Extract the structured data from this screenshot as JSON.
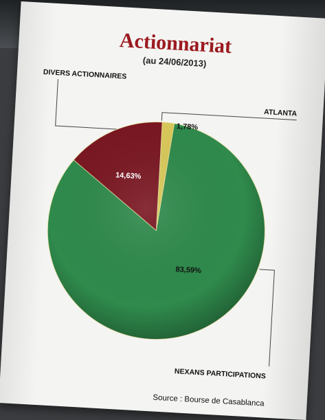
{
  "chart_data": {
    "type": "pie",
    "title": "Actionnariat",
    "subtitle": "(au 24/06/2013)",
    "slices": [
      {
        "label": "NEXANS PARTICIPATIONS",
        "value": 83.59,
        "value_label": "83,59%",
        "color": "#2f8a4c"
      },
      {
        "label": "DIVERS ACTIONNAIRES",
        "value": 14.63,
        "value_label": "14,63%",
        "color": "#7a1722"
      },
      {
        "label": "ATLANTA",
        "value": 1.78,
        "value_label": "1,78%",
        "color": "#d9c95a"
      }
    ],
    "source": "Source : Bourse de Casablanca"
  }
}
